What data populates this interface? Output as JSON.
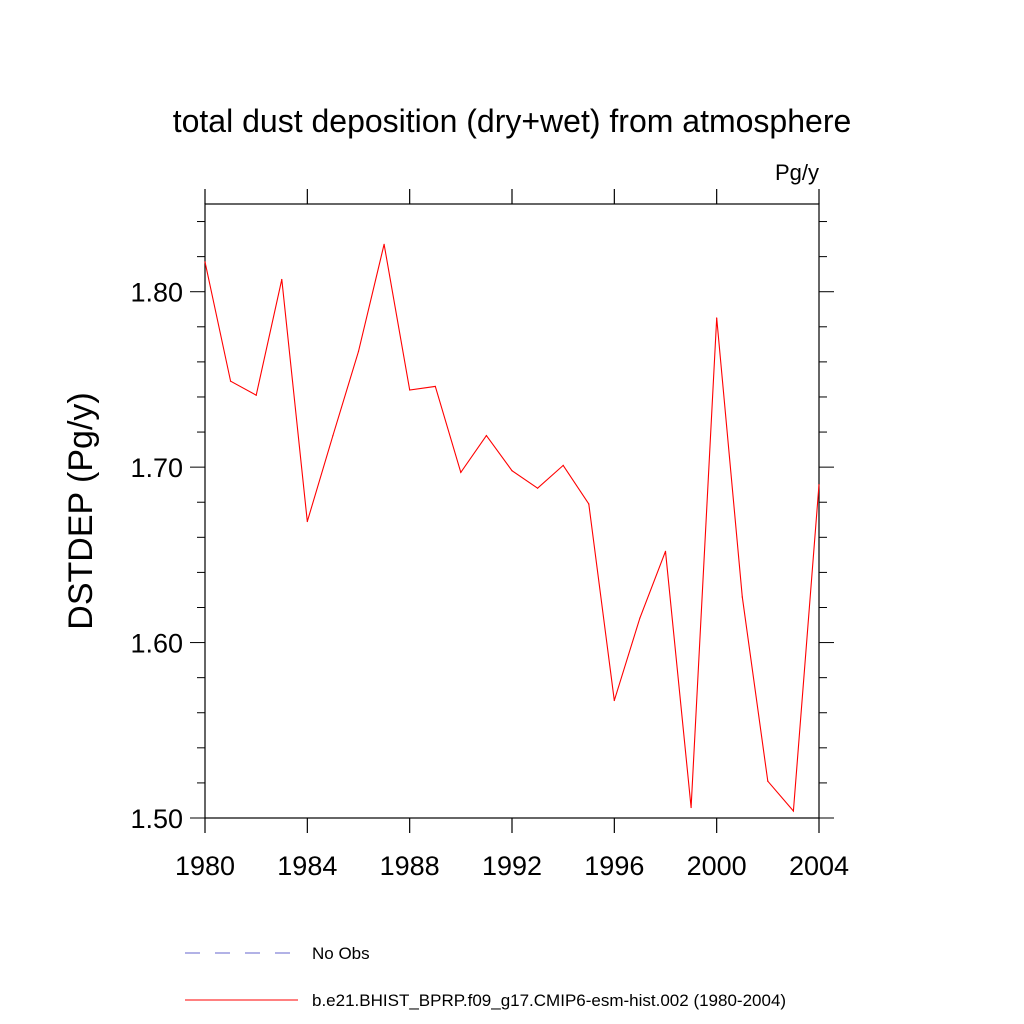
{
  "chart_data": {
    "type": "line",
    "title": "total dust deposition (dry+wet) from atmosphere",
    "units": "Pg/y",
    "ylabel": "DSTDEP  (Pg/y)",
    "xlabel": "",
    "xlim": [
      1980,
      2004
    ],
    "ylim": [
      1.5,
      1.85
    ],
    "x_ticks": [
      "1980",
      "1984",
      "1988",
      "1992",
      "1996",
      "2000",
      "2004"
    ],
    "y_ticks": [
      "1.50",
      "1.60",
      "1.70",
      "1.80"
    ],
    "grid": false,
    "legend_position": "bottom",
    "x": [
      1980,
      1981,
      1982,
      1983,
      1984,
      1985,
      1986,
      1987,
      1988,
      1989,
      1990,
      1991,
      1992,
      1993,
      1994,
      1995,
      1996,
      1997,
      1998,
      1999,
      2000,
      2001,
      2002,
      2003,
      2004
    ],
    "series": [
      {
        "name": "b.e21.BHIST_BPRP.f09_g17.CMIP6-esm-hist.002 (1980-2004)",
        "color": "#ff0000",
        "style": "solid",
        "values": [
          1.817,
          1.749,
          1.741,
          1.807,
          1.669,
          1.718,
          1.766,
          1.827,
          1.744,
          1.746,
          1.697,
          1.718,
          1.698,
          1.688,
          1.701,
          1.679,
          1.567,
          1.614,
          1.652,
          1.506,
          1.785,
          1.626,
          1.521,
          1.504,
          1.69
        ]
      }
    ],
    "legend": [
      {
        "label": "No Obs",
        "color": "#6666cc",
        "style": "dashed"
      },
      {
        "label": "b.e21.BHIST_BPRP.f09_g17.CMIP6-esm-hist.002 (1980-2004)",
        "color": "#ff0000",
        "style": "solid"
      }
    ]
  }
}
